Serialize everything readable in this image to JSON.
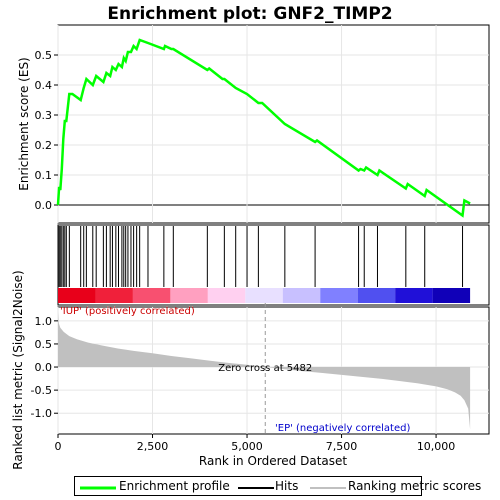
{
  "chart_data": {
    "type": "line",
    "title": "Enrichment plot: GNF2_TIMP2",
    "es_panel": {
      "ylabel": "Enrichment score (ES)",
      "ylim": [
        -0.06,
        0.6
      ],
      "yticks": [
        0.0,
        0.1,
        0.2,
        0.3,
        0.4,
        0.5
      ],
      "ytick_labels": [
        "0.0",
        "0.1",
        "0.2",
        "0.3",
        "0.4",
        "0.5"
      ],
      "series": [
        {
          "color": "#00ff00",
          "x": [
            0,
            30,
            60,
            100,
            140,
            180,
            220,
            300,
            380,
            600,
            680,
            750,
            920,
            1010,
            1200,
            1280,
            1380,
            1440,
            1530,
            1600,
            1690,
            1740,
            1790,
            1850,
            1930,
            2000,
            2080,
            2160,
            2380,
            2800,
            2830,
            3000,
            3050,
            3950,
            4000,
            4350,
            4400,
            4700,
            5000,
            5300,
            5400,
            6000,
            6800,
            6850,
            7950,
            8000,
            8100,
            8150,
            8450,
            8500,
            9200,
            9250,
            9700,
            9750,
            10700,
            10750,
            10900
          ],
          "y": [
            0.0,
            0.06,
            0.05,
            0.12,
            0.22,
            0.28,
            0.28,
            0.37,
            0.37,
            0.35,
            0.39,
            0.42,
            0.4,
            0.43,
            0.41,
            0.44,
            0.43,
            0.46,
            0.45,
            0.47,
            0.46,
            0.49,
            0.48,
            0.51,
            0.51,
            0.53,
            0.52,
            0.55,
            0.54,
            0.52,
            0.53,
            0.52,
            0.52,
            0.45,
            0.455,
            0.42,
            0.42,
            0.39,
            0.37,
            0.34,
            0.34,
            0.27,
            0.21,
            0.215,
            0.115,
            0.12,
            0.115,
            0.125,
            0.1,
            0.115,
            0.055,
            0.07,
            0.03,
            0.05,
            -0.035,
            0.015,
            0.005
          ]
        }
      ]
    },
    "hits_panel": {
      "hit_positions": [
        30,
        60,
        100,
        140,
        180,
        220,
        300,
        600,
        680,
        750,
        920,
        1010,
        1200,
        1280,
        1380,
        1440,
        1530,
        1600,
        1690,
        1740,
        1790,
        1850,
        1930,
        2000,
        2080,
        2160,
        2380,
        2800,
        3050,
        3950,
        4400,
        4700,
        5000,
        5300,
        6000,
        6800,
        7950,
        8100,
        8450,
        9200,
        9700,
        10700
      ]
    },
    "metric_panel": {
      "ylabel": "Ranked list metric (Signal2Noise)",
      "ylim": [
        -1.45,
        1.3
      ],
      "yticks": [
        1.0,
        0.5,
        0.0,
        -0.5,
        -1.0
      ],
      "ytick_labels": [
        "1.0",
        "0.5",
        "0.0",
        "-0.5",
        "-1.0"
      ],
      "curve_x": [
        0,
        20,
        60,
        150,
        300,
        500,
        800,
        1200,
        1600,
        2000,
        2500,
        3000,
        3500,
        4000,
        4500,
        5000,
        5482,
        6000,
        6500,
        7000,
        7500,
        8000,
        8500,
        9000,
        9500,
        10000,
        10300,
        10500,
        10650,
        10750,
        10850,
        10900
      ],
      "curve_y": [
        1.2,
        0.95,
        0.85,
        0.76,
        0.67,
        0.6,
        0.53,
        0.46,
        0.4,
        0.35,
        0.3,
        0.24,
        0.19,
        0.14,
        0.09,
        0.05,
        0.0,
        -0.05,
        -0.09,
        -0.13,
        -0.17,
        -0.21,
        -0.25,
        -0.3,
        -0.35,
        -0.42,
        -0.48,
        -0.55,
        -0.62,
        -0.72,
        -0.9,
        -1.35
      ],
      "zero_cross_label": "Zero cross at 5482",
      "zero_cross": 5482,
      "pos_label": "'IUP' (positively correlated)",
      "neg_label": "'EP' (negatively correlated)"
    },
    "xlabel": "Rank in Ordered Dataset",
    "xlim": [
      0,
      11400
    ],
    "xticks": [
      0,
      2500,
      5000,
      7500,
      10000
    ],
    "xtick_labels": [
      "0",
      "2,500",
      "5,000",
      "7,500",
      "10,000"
    ],
    "n_genes": 10900,
    "legend": {
      "placement": "bottom",
      "items": [
        "Enrichment profile",
        "Hits",
        "Ranking metric scores"
      ]
    },
    "colors": {
      "es_line": "#00ff00",
      "metric_fill": "#c0c0c0",
      "pos_label": "#cc0000",
      "neg_label": "#0000cc",
      "grid": "#e6e6e6",
      "zero_line": "#999999"
    },
    "color_bar_stops": [
      "#e8001a",
      "#f0203a",
      "#f85070",
      "#ffa0c0",
      "#ffd0f0",
      "#e8e0ff",
      "#c8c0ff",
      "#8080ff",
      "#5050f0",
      "#2010d8",
      "#1000b8"
    ]
  }
}
